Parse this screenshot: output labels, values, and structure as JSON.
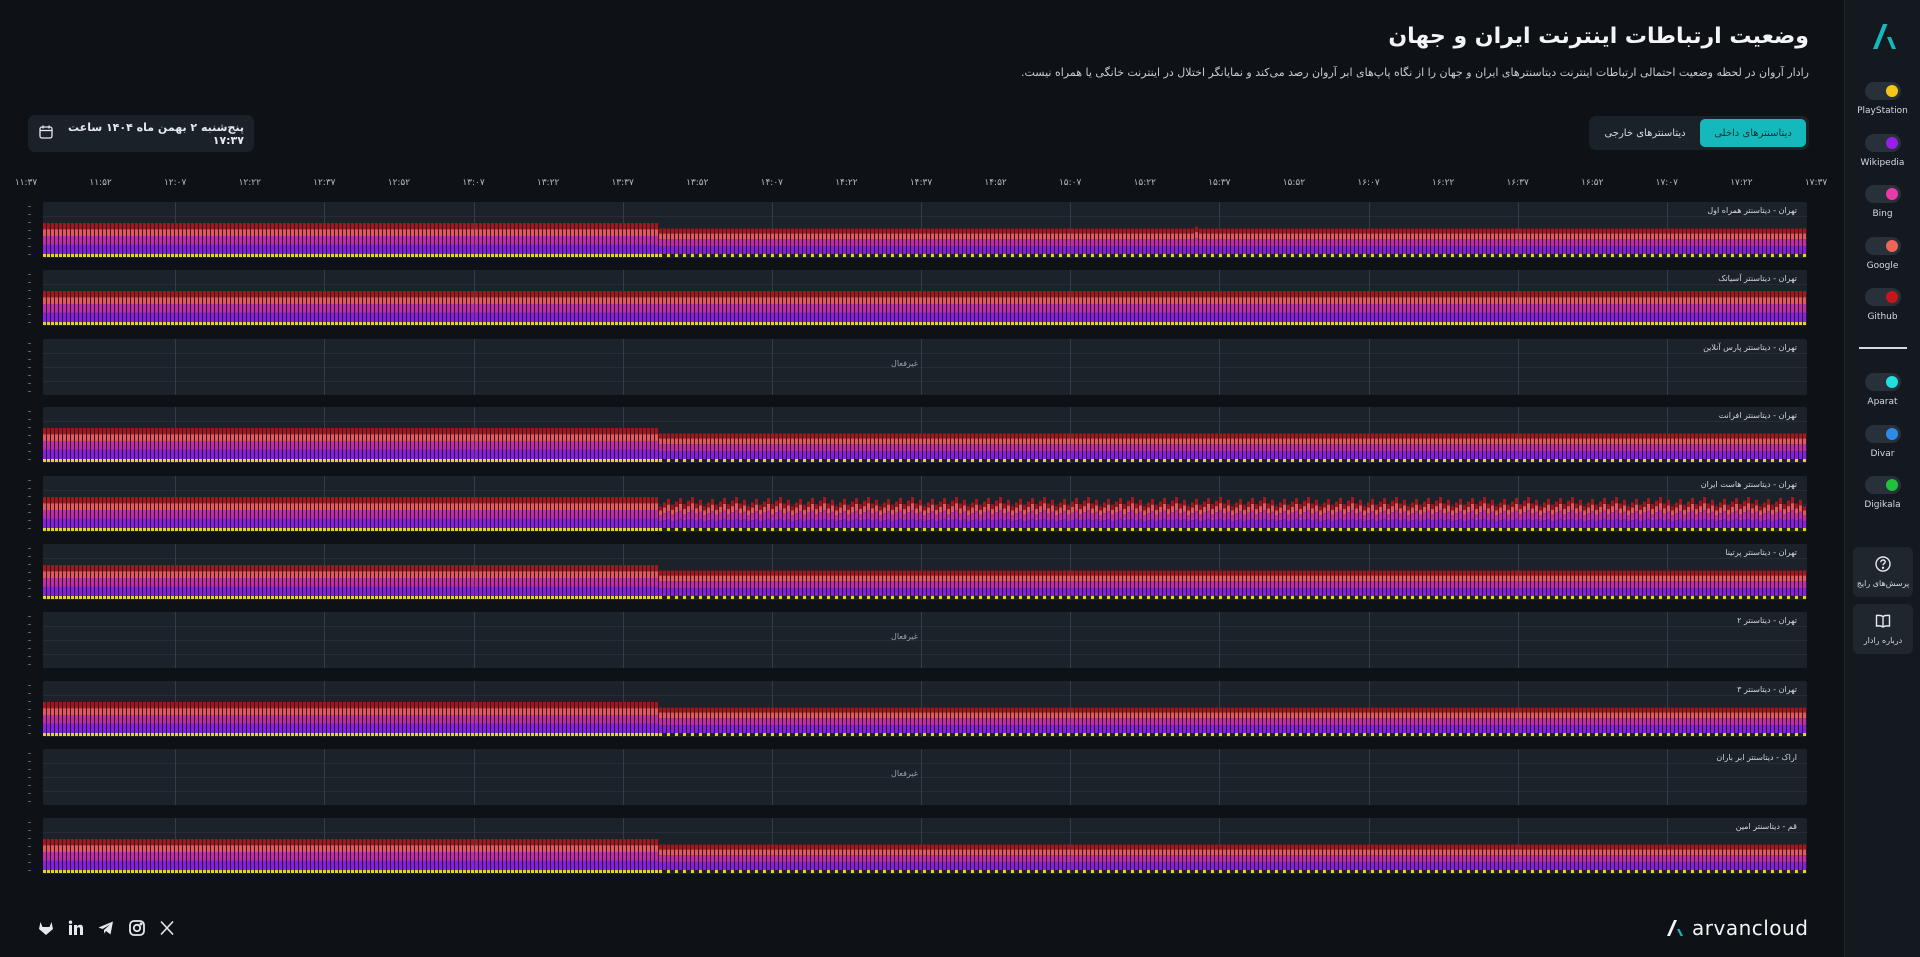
{
  "page": {
    "title": "وضعیت ارتباطات اینترنت ایران و جهان",
    "subtitle": "رادار آروان در لحظه وضعیت احتمالی ارتباطات اینترنت دیتاسنترهای ایران و جهان را از نگاه پاپ‌های ابر آروان رصد می‌کند و نمایانگر اختلال در اینترنت خانگی یا همراه نیست."
  },
  "tabs": [
    {
      "label": "دیتاسنترهای داخلی",
      "active": true
    },
    {
      "label": "دیتاسنترهای خارجی",
      "active": false
    }
  ],
  "date_display": "پنج‌شنبه ۲ بهمن ماه ۱۴۰۴ ساعت ۱۷:۳۷",
  "time_ticks": [
    "۱۱:۳۷",
    "۱۱:۵۲",
    "۱۲:۰۷",
    "۱۲:۲۲",
    "۱۲:۳۷",
    "۱۲:۵۲",
    "۱۳:۰۷",
    "۱۳:۲۲",
    "۱۳:۳۷",
    "۱۳:۵۲",
    "۱۴:۰۷",
    "۱۴:۲۲",
    "۱۴:۳۷",
    "۱۴:۵۲",
    "۱۵:۰۷",
    "۱۵:۲۲",
    "۱۵:۳۷",
    "۱۵:۵۲",
    "۱۶:۰۷",
    "۱۶:۲۲",
    "۱۶:۳۷",
    "۱۶:۵۲",
    "۱۷:۰۷",
    "۱۷:۲۲",
    "۱۷:۳۷"
  ],
  "colors": {
    "yellow": "#e8d41c",
    "purple": "#8a1ee0",
    "magenta": "#c42aa8",
    "pink": "#e8555a",
    "red": "#a8151b",
    "accent": "#16b9bb"
  },
  "panels": [
    {
      "label": "تهران - دیتاسنتر همراه اول",
      "status": "active",
      "pattern": "drop"
    },
    {
      "label": "تهران - دیتاسنتر آسیاتک",
      "status": "active",
      "pattern": "full"
    },
    {
      "label": "تهران - دیتاسنتر پارس آنلاین",
      "status": "inactive",
      "nodata": "غیرفعال"
    },
    {
      "label": "تهران - دیتاسنتر افرانت",
      "status": "active",
      "pattern": "drop"
    },
    {
      "label": "تهران - دیتاسنتر هاست ایران",
      "status": "active",
      "pattern": "noisy"
    },
    {
      "label": "تهران - دیتاسنتر پرتینا",
      "status": "active",
      "pattern": "drop"
    },
    {
      "label": "تهران - دیتاسنتر ۲",
      "status": "inactive",
      "nodata": "غیرفعال"
    },
    {
      "label": "تهران - دیتاسنتر ۳",
      "status": "active",
      "pattern": "drop"
    },
    {
      "label": "اراک - دیتاسنتر ابر باران",
      "status": "inactive",
      "nodata": "غیرفعال"
    },
    {
      "label": "قم - دیتاسنتر امین",
      "status": "active",
      "pattern": "drop"
    }
  ],
  "services_group1": [
    {
      "name": "PlayStation",
      "color": "#f5c518"
    },
    {
      "name": "Wikipedia",
      "color": "#9b1ee8"
    },
    {
      "name": "Bing",
      "color": "#e83aa8"
    },
    {
      "name": "Google",
      "color": "#f0645a"
    },
    {
      "name": "Github",
      "color": "#c4161c"
    }
  ],
  "services_group2": [
    {
      "name": "Aparat",
      "color": "#22e0dd"
    },
    {
      "name": "Divar",
      "color": "#2d8ce8"
    },
    {
      "name": "Digikala",
      "color": "#1fc23a"
    }
  ],
  "sidebar_buttons": {
    "faq": "پرسش‌های رایج",
    "about": "درباره رادار"
  },
  "brand": "arvancloud",
  "icons": {
    "social": [
      "gitlab-icon",
      "linkedin-icon",
      "telegram-icon",
      "instagram-icon",
      "x-icon"
    ]
  }
}
